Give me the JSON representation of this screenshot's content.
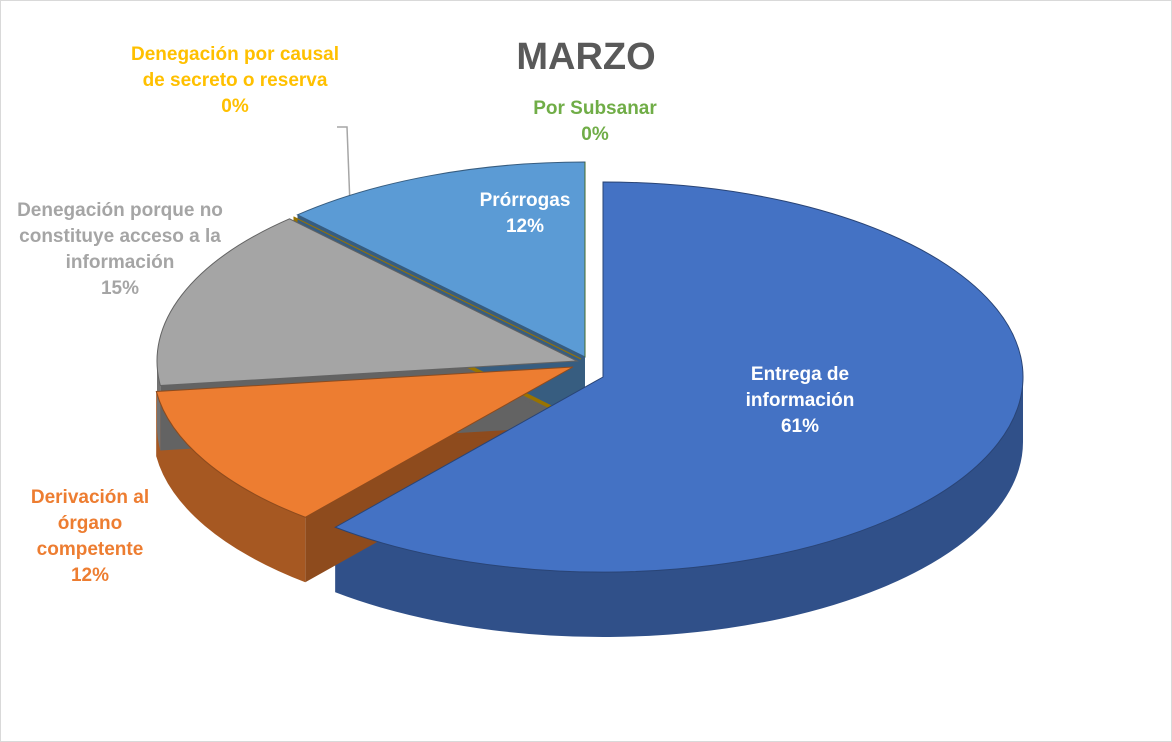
{
  "chart_data": {
    "type": "pie",
    "title": "MARZO",
    "categories": [
      "Entrega de información",
      "Derivación al órgano competente",
      "Denegación porque no constituye acceso a la información",
      "Denegación por causal de secreto o reserva",
      "Prórrogas",
      "Por Subsanar"
    ],
    "values": [
      61,
      12,
      15,
      0,
      12,
      0
    ],
    "value_labels": [
      "61%",
      "12%",
      "15%",
      "0%",
      "12%",
      "0%"
    ],
    "colors": [
      "#4472c4",
      "#ed7d31",
      "#a5a5a5",
      "#ffc000",
      "#5b9bd5",
      "#70ad47"
    ]
  }
}
